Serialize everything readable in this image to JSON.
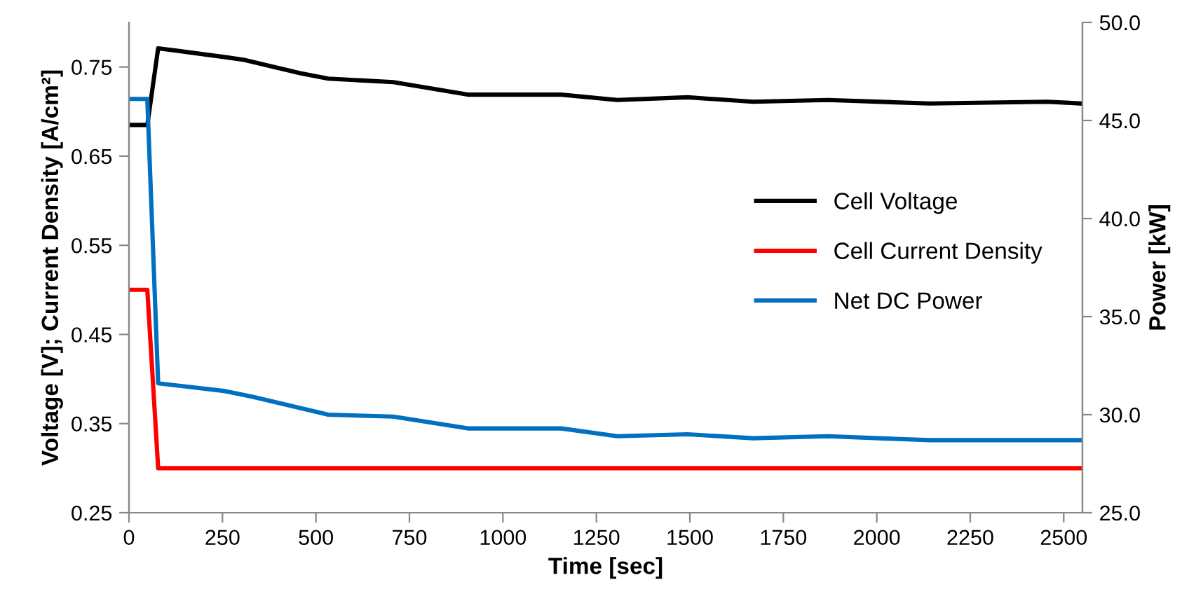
{
  "chart_data": {
    "type": "line",
    "xlabel": "Time [sec]",
    "ylabel": "Voltage [V]; Current Density [A/cm²]",
    "y2label": "Power [kW]",
    "xlim": [
      0,
      2550
    ],
    "xticks": [
      0,
      250,
      500,
      750,
      1000,
      1250,
      1500,
      1750,
      2000,
      2250,
      2500
    ],
    "ylim": [
      0.25,
      0.8
    ],
    "yticks": [
      0.25,
      0.35,
      0.45,
      0.55,
      0.65,
      0.75
    ],
    "y2lim": [
      25,
      50
    ],
    "y2ticks": [
      {
        "value": 25,
        "label": "25.0"
      },
      {
        "value": 30,
        "label": "30.0"
      },
      {
        "value": 35,
        "label": "35.0"
      },
      {
        "value": 40,
        "label": "40.0"
      },
      {
        "value": 45,
        "label": "45.0"
      },
      {
        "value": 50,
        "label": "50.0"
      }
    ],
    "grid": false,
    "legend": "right",
    "marker": "none",
    "line_style": "solid",
    "series": [
      {
        "name": "Cell Voltage",
        "color": "#000000",
        "x": [
          0,
          49,
          78,
          258,
          308,
          458,
          533,
          707,
          906,
          1156,
          1306,
          1494,
          1669,
          1869,
          2141,
          2455,
          2550
        ],
        "values": [
          0.685,
          0.685,
          0.771,
          0.761,
          0.758,
          0.743,
          0.737,
          0.733,
          0.719,
          0.719,
          0.713,
          0.716,
          0.711,
          0.713,
          0.709,
          0.711,
          0.709
        ]
      },
      {
        "name": "Cell Current Density",
        "color": "#ff0000",
        "x": [
          0,
          49,
          78,
          2550
        ],
        "values": [
          0.5,
          0.5,
          0.3,
          0.3
        ]
      },
      {
        "name": "Net DC Power",
        "color": "#0070c0",
        "axis": "y2",
        "x": [
          0,
          49,
          78,
          258,
          333,
          533,
          707,
          906,
          1156,
          1306,
          1494,
          1669,
          1869,
          2141,
          2550
        ],
        "values": [
          46.1,
          46.1,
          31.6,
          31.2,
          30.9,
          30.0,
          29.9,
          29.3,
          29.3,
          28.9,
          29.0,
          28.8,
          28.9,
          28.7,
          28.7
        ]
      }
    ]
  }
}
